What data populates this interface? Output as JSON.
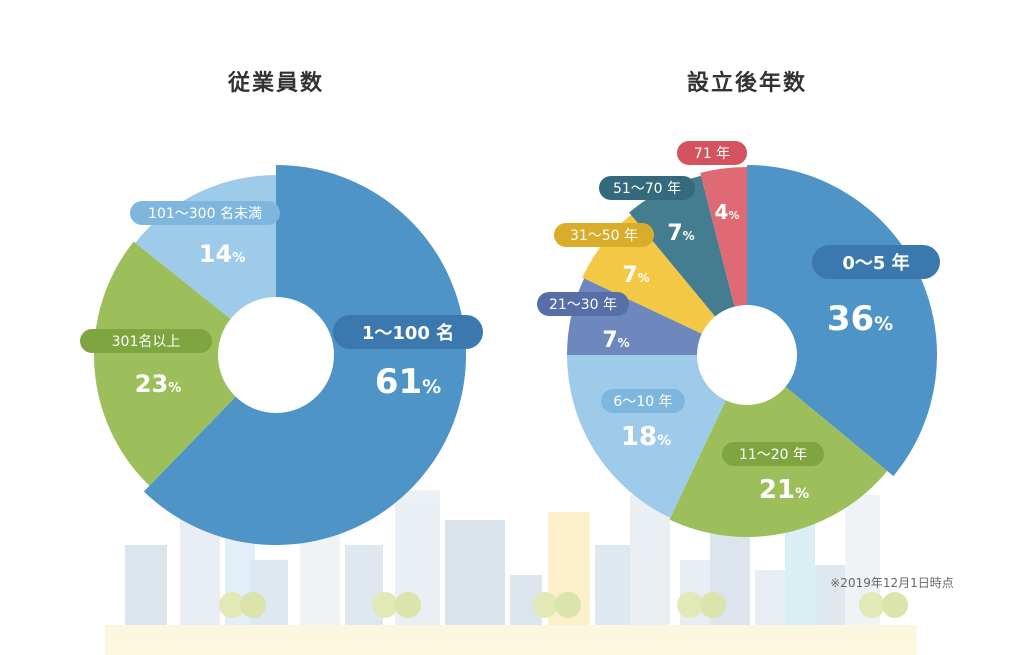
{
  "chart_data": [
    {
      "type": "pie",
      "title": "従業員数",
      "slices": [
        {
          "label": "1〜100 名",
          "value": 61,
          "pct_text": "61",
          "color": "#4f94c7",
          "pill_color": "#3a78ad"
        },
        {
          "label": "301名以上",
          "value": 23,
          "pct_text": "23",
          "color": "#9cbf5c",
          "pill_color": "#7fa540"
        },
        {
          "label": "101〜300 名未満",
          "value": 14,
          "pct_text": "14",
          "color": "#9ecbea",
          "pill_color": "#7fb6de"
        }
      ]
    },
    {
      "type": "pie",
      "title": "設立後年数",
      "slices": [
        {
          "label": "0〜5 年",
          "value": 36,
          "pct_text": "36",
          "color": "#4f94c7",
          "pill_color": "#3a78ad"
        },
        {
          "label": "11〜20 年",
          "value": 21,
          "pct_text": "21",
          "color": "#9cbf5c",
          "pill_color": "#7fa540"
        },
        {
          "label": "6〜10 年",
          "value": 18,
          "pct_text": "18",
          "color": "#9ecbea",
          "pill_color": "#7fb6de"
        },
        {
          "label": "21〜30 年",
          "value": 7,
          "pct_text": "7",
          "color": "#6e88bd",
          "pill_color": "#566fa6"
        },
        {
          "label": "31〜50 年",
          "value": 7,
          "pct_text": "7",
          "color": "#f2c845",
          "pill_color": "#d9ad2a"
        },
        {
          "label": "51〜70 年",
          "value": 7,
          "pct_text": "7",
          "color": "#437d8f",
          "pill_color": "#346a7b"
        },
        {
          "label": "71 年",
          "value": 4,
          "pct_text": "4",
          "color": "#e06a73",
          "pill_color": "#d3545e"
        }
      ]
    }
  ],
  "percent_sign": "%",
  "footnote": "※2019年12月1日時点",
  "colors": {
    "title": "#333333",
    "ground": "#fbf7dc"
  }
}
